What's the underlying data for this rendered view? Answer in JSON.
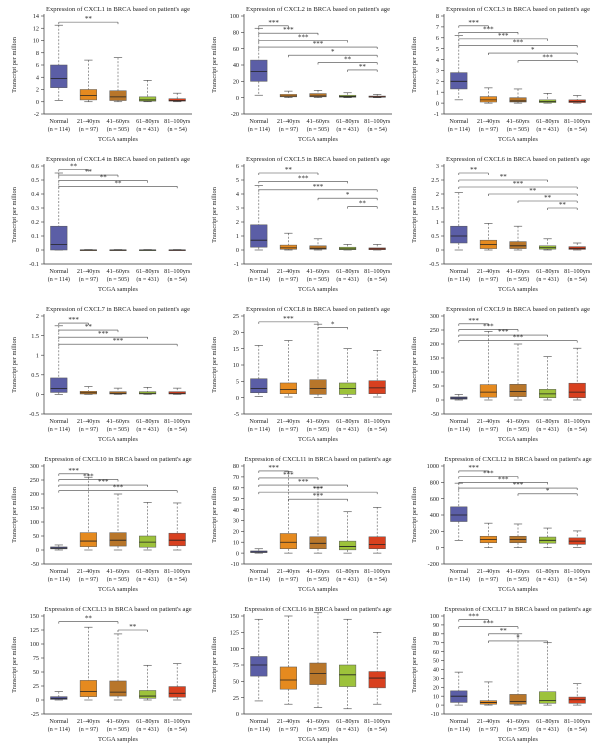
{
  "figure": {
    "groups": [
      {
        "label": "Normal",
        "n": "(n = 114)"
      },
      {
        "label": "21–40yrs",
        "n": "(n = 97)"
      },
      {
        "label": "41–60yrs",
        "n": "(n = 505)"
      },
      {
        "label": "61–80yrs",
        "n": "(n = 431)"
      },
      {
        "label": "81–100yrs",
        "n": "(n = 54)"
      }
    ],
    "group_colors": [
      "#5b5ea6",
      "#e58a1f",
      "#b8762a",
      "#9dc23b",
      "#d8401f"
    ]
  },
  "chart_data": [
    {
      "type": "box",
      "title": "Expression of CXCL1 in BRCA based on patient's age",
      "xlabel": "TCGA samples",
      "ylabel": "Transcript per million",
      "ylim": [
        -2,
        14
      ],
      "yticks": [
        -2,
        0,
        2,
        4,
        6,
        8,
        10,
        12,
        14
      ],
      "boxes": [
        [
          0.2,
          2.3,
          3.8,
          6.0,
          12.5
        ],
        [
          0.0,
          0.3,
          1.0,
          2.0,
          6.8
        ],
        [
          0.0,
          0.2,
          0.8,
          1.8,
          7.2
        ],
        [
          0.0,
          0.1,
          0.3,
          0.8,
          3.5
        ],
        [
          0.0,
          0.1,
          0.2,
          0.5,
          1.4
        ]
      ],
      "sig": [
        {
          "from": 0,
          "to": 2,
          "label": "**",
          "y": 13.0
        }
      ]
    },
    {
      "type": "box",
      "title": "Expression of CXCL2 in BRCA based on patient's age",
      "xlabel": "TCGA samples",
      "ylabel": "Transcript per million",
      "ylim": [
        -20,
        100
      ],
      "yticks": [
        -20,
        0,
        20,
        40,
        60,
        80,
        100
      ],
      "boxes": [
        [
          3,
          20,
          32,
          46,
          85
        ],
        [
          0,
          1,
          2,
          4,
          8
        ],
        [
          0,
          1,
          2,
          5,
          9
        ],
        [
          0,
          0.5,
          1.5,
          3,
          6
        ],
        [
          0,
          0.5,
          1,
          2,
          4
        ]
      ],
      "sig": [
        {
          "from": 0,
          "to": 1,
          "label": "***",
          "y": 88
        },
        {
          "from": 0,
          "to": 2,
          "label": "***",
          "y": 79
        },
        {
          "from": 0,
          "to": 3,
          "label": "***",
          "y": 70
        },
        {
          "from": 0,
          "to": 4,
          "label": "***",
          "y": 62
        },
        {
          "from": 1,
          "to": 4,
          "label": "*",
          "y": 52
        },
        {
          "from": 2,
          "to": 4,
          "label": "**",
          "y": 43
        },
        {
          "from": 3,
          "to": 4,
          "label": "**",
          "y": 34
        }
      ]
    },
    {
      "type": "box",
      "title": "Expression of CXCL3 in BRCA based on patient's age",
      "xlabel": "TCGA samples",
      "ylabel": "Transcript per million",
      "ylim": [
        -1,
        8
      ],
      "yticks": [
        -1,
        0,
        1,
        2,
        3,
        4,
        5,
        6,
        7,
        8
      ],
      "boxes": [
        [
          0.3,
          1.3,
          2.0,
          2.8,
          6.2
        ],
        [
          0,
          0.1,
          0.3,
          0.6,
          1.4
        ],
        [
          0,
          0.1,
          0.2,
          0.5,
          1.3
        ],
        [
          0,
          0.05,
          0.15,
          0.3,
          0.9
        ],
        [
          0,
          0.05,
          0.15,
          0.3,
          0.7
        ]
      ],
      "sig": [
        {
          "from": 0,
          "to": 1,
          "label": "***",
          "y": 7.1
        },
        {
          "from": 0,
          "to": 2,
          "label": "***",
          "y": 6.5
        },
        {
          "from": 0,
          "to": 3,
          "label": "***",
          "y": 5.9
        },
        {
          "from": 0,
          "to": 4,
          "label": "***",
          "y": 5.3
        },
        {
          "from": 1,
          "to": 4,
          "label": "*",
          "y": 4.6
        },
        {
          "from": 2,
          "to": 4,
          "label": "***",
          "y": 3.9
        }
      ]
    },
    {
      "type": "box",
      "title": "Expression of CXCL4 in BRCA based on patient's age",
      "xlabel": "TCGA samples",
      "ylabel": "Transcript per million",
      "ylim": [
        -0.1,
        0.6
      ],
      "yticks": [
        -0.1,
        0,
        0.1,
        0.2,
        0.3,
        0.4,
        0.5,
        0.6
      ],
      "boxes": [
        [
          0,
          0.0,
          0.04,
          0.17,
          0.55
        ],
        [
          0,
          0,
          0,
          0.001,
          0.003
        ],
        [
          0,
          0,
          0,
          0.001,
          0.003
        ],
        [
          0,
          0,
          0,
          0.001,
          0.003
        ],
        [
          0,
          0,
          0,
          0.001,
          0.003
        ]
      ],
      "sig": [
        {
          "from": 0,
          "to": 1,
          "label": "**",
          "y": 0.575
        },
        {
          "from": 0,
          "to": 2,
          "label": "**",
          "y": 0.535
        },
        {
          "from": 0,
          "to": 3,
          "label": "**",
          "y": 0.495
        },
        {
          "from": 0,
          "to": 4,
          "label": "**",
          "y": 0.455
        }
      ]
    },
    {
      "type": "box",
      "title": "Expression of CXCL5 in BRCA based on patient's age",
      "xlabel": "TCGA samples",
      "ylabel": "Transcript per million",
      "ylim": [
        -1,
        6
      ],
      "yticks": [
        -1,
        0,
        1,
        2,
        3,
        4,
        5,
        6
      ],
      "boxes": [
        [
          0,
          0.2,
          0.7,
          1.8,
          4.6
        ],
        [
          0,
          0.05,
          0.15,
          0.35,
          1.2
        ],
        [
          0,
          0.05,
          0.12,
          0.3,
          0.8
        ],
        [
          0,
          0.02,
          0.08,
          0.2,
          0.4
        ],
        [
          0,
          0.02,
          0.08,
          0.15,
          0.4
        ]
      ],
      "sig": [
        {
          "from": 0,
          "to": 2,
          "label": "**",
          "y": 5.5
        },
        {
          "from": 0,
          "to": 3,
          "label": "***",
          "y": 4.9
        },
        {
          "from": 0,
          "to": 4,
          "label": "***",
          "y": 4.3
        },
        {
          "from": 2,
          "to": 4,
          "label": "*",
          "y": 3.7
        },
        {
          "from": 3,
          "to": 4,
          "label": "**",
          "y": 3.1
        }
      ]
    },
    {
      "type": "box",
      "title": "Expression of CXCL6 in BRCA based on patient's age",
      "xlabel": "TCGA samples",
      "ylabel": "Transcript per million",
      "ylim": [
        -0.5,
        3
      ],
      "yticks": [
        -0.5,
        0,
        0.5,
        1,
        1.5,
        2,
        2.5,
        3
      ],
      "boxes": [
        [
          0,
          0.25,
          0.5,
          0.85,
          2.05
        ],
        [
          0,
          0.05,
          0.2,
          0.35,
          0.95
        ],
        [
          0,
          0.05,
          0.15,
          0.3,
          0.85
        ],
        [
          0,
          0.03,
          0.08,
          0.15,
          0.4
        ],
        [
          0,
          0.02,
          0.06,
          0.12,
          0.25
        ]
      ],
      "sig": [
        {
          "from": 0,
          "to": 1,
          "label": "**",
          "y": 2.75
        },
        {
          "from": 0,
          "to": 3,
          "label": "**",
          "y": 2.5
        },
        {
          "from": 0,
          "to": 4,
          "label": "***",
          "y": 2.25
        },
        {
          "from": 1,
          "to": 4,
          "label": "**",
          "y": 2.0
        },
        {
          "from": 2,
          "to": 4,
          "label": "**",
          "y": 1.75
        },
        {
          "from": 3,
          "to": 4,
          "label": "**",
          "y": 1.5
        }
      ]
    },
    {
      "type": "box",
      "title": "Expression of CXCL7 in BRCA based on patient's age",
      "xlabel": "TCGA samples",
      "ylabel": "Transcript per million",
      "ylim": [
        -0.5,
        2
      ],
      "yticks": [
        -0.5,
        0,
        0.5,
        1,
        1.5,
        2
      ],
      "boxes": [
        [
          0,
          0.05,
          0.15,
          0.42,
          1.75
        ],
        [
          0,
          0.01,
          0.04,
          0.08,
          0.2
        ],
        [
          0,
          0.01,
          0.03,
          0.07,
          0.16
        ],
        [
          0,
          0.01,
          0.03,
          0.07,
          0.18
        ],
        [
          0,
          0.01,
          0.03,
          0.07,
          0.16
        ]
      ],
      "sig": [
        {
          "from": 0,
          "to": 1,
          "label": "***",
          "y": 1.82
        },
        {
          "from": 0,
          "to": 2,
          "label": "**",
          "y": 1.64
        },
        {
          "from": 0,
          "to": 3,
          "label": "***",
          "y": 1.46
        },
        {
          "from": 0,
          "to": 4,
          "label": "***",
          "y": 1.28
        }
      ]
    },
    {
      "type": "box",
      "title": "Expression of CXCL8 in BRCA based on patient's age",
      "xlabel": "TCGA samples",
      "ylabel": "Transcript per million",
      "ylim": [
        -5,
        25
      ],
      "yticks": [
        -5,
        0,
        5,
        10,
        15,
        20,
        25
      ],
      "boxes": [
        [
          0.3,
          1.5,
          2.8,
          5.8,
          16
        ],
        [
          0.2,
          1.2,
          2.5,
          4.5,
          17.5
        ],
        [
          0.1,
          1.0,
          2.8,
          5.5,
          22.5
        ],
        [
          0.1,
          1.0,
          2.8,
          4.5,
          15
        ],
        [
          0.2,
          1.2,
          3.0,
          5.2,
          14.5
        ]
      ],
      "sig": [
        {
          "from": 0,
          "to": 2,
          "label": "***",
          "y": 23.2
        },
        {
          "from": 2,
          "to": 3,
          "label": "*",
          "y": 21.5
        }
      ]
    },
    {
      "type": "box",
      "title": "Expression of CXCL9 in BRCA based on patient's age",
      "xlabel": "TCGA samples",
      "ylabel": "Transcript per million",
      "ylim": [
        -50,
        300
      ],
      "yticks": [
        -50,
        0,
        50,
        100,
        150,
        200,
        250,
        300
      ],
      "boxes": [
        [
          0,
          3,
          7,
          11,
          20
        ],
        [
          0,
          10,
          28,
          55,
          245
        ],
        [
          0,
          12,
          30,
          56,
          200
        ],
        [
          0,
          8,
          22,
          38,
          155
        ],
        [
          0,
          8,
          28,
          60,
          185
        ]
      ],
      "sig": [
        {
          "from": 0,
          "to": 1,
          "label": "***",
          "y": 272
        },
        {
          "from": 0,
          "to": 2,
          "label": "***",
          "y": 252
        },
        {
          "from": 0,
          "to": 3,
          "label": "***",
          "y": 232
        },
        {
          "from": 0,
          "to": 4,
          "label": "***",
          "y": 212
        }
      ]
    },
    {
      "type": "box",
      "title": "Expression of CXCL10 in BRCA based on patient's age",
      "xlabel": "TCGA samples",
      "ylabel": "Transcript per million",
      "ylim": [
        -50,
        300
      ],
      "yticks": [
        -50,
        0,
        50,
        100,
        150,
        200,
        250,
        300
      ],
      "boxes": [
        [
          0,
          4,
          7,
          11,
          18
        ],
        [
          0,
          12,
          32,
          62,
          260
        ],
        [
          0,
          14,
          35,
          62,
          200
        ],
        [
          0,
          10,
          28,
          50,
          170
        ],
        [
          0,
          15,
          35,
          60,
          168
        ]
      ],
      "sig": [
        {
          "from": 0,
          "to": 1,
          "label": "***",
          "y": 272
        },
        {
          "from": 0,
          "to": 2,
          "label": "***",
          "y": 252
        },
        {
          "from": 0,
          "to": 3,
          "label": "***",
          "y": 232
        },
        {
          "from": 0,
          "to": 4,
          "label": "***",
          "y": 212
        }
      ]
    },
    {
      "type": "box",
      "title": "Expression of CXCL11 in BRCA based on patient's age",
      "xlabel": "TCGA samples",
      "ylabel": "Transcript per million",
      "ylim": [
        -10,
        80
      ],
      "yticks": [
        -10,
        0,
        10,
        20,
        30,
        40,
        50,
        60,
        70,
        80
      ],
      "boxes": [
        [
          0,
          0.5,
          1,
          2,
          4
        ],
        [
          0,
          4,
          10,
          18,
          75
        ],
        [
          0,
          4,
          9,
          15,
          60
        ],
        [
          0,
          3,
          6,
          11,
          38
        ],
        [
          0,
          4,
          8,
          15,
          42
        ]
      ],
      "sig": [
        {
          "from": 0,
          "to": 1,
          "label": "***",
          "y": 75.5
        },
        {
          "from": 0,
          "to": 2,
          "label": "***",
          "y": 69
        },
        {
          "from": 0,
          "to": 3,
          "label": "***",
          "y": 62.5
        },
        {
          "from": 0,
          "to": 4,
          "label": "***",
          "y": 56
        },
        {
          "from": 1,
          "to": 3,
          "label": "***",
          "y": 49.5
        }
      ]
    },
    {
      "type": "box",
      "title": "Expression of CXCL12 in BRCA based on patient's age",
      "xlabel": "TCGA samples",
      "ylabel": "Transcript per million",
      "ylim": [
        -200,
        1000
      ],
      "yticks": [
        -200,
        0,
        200,
        400,
        600,
        800,
        1000
      ],
      "boxes": [
        [
          90,
          320,
          400,
          500,
          790
        ],
        [
          0,
          60,
          100,
          140,
          300
        ],
        [
          0,
          60,
          100,
          140,
          290
        ],
        [
          0,
          55,
          90,
          130,
          240
        ],
        [
          0,
          40,
          80,
          120,
          205
        ]
      ],
      "sig": [
        {
          "from": 0,
          "to": 1,
          "label": "***",
          "y": 940
        },
        {
          "from": 0,
          "to": 2,
          "label": "***",
          "y": 870
        },
        {
          "from": 0,
          "to": 3,
          "label": "***",
          "y": 800
        },
        {
          "from": 0,
          "to": 4,
          "label": "***",
          "y": 730
        },
        {
          "from": 2,
          "to": 4,
          "label": "*",
          "y": 660
        }
      ]
    },
    {
      "type": "box",
      "title": "Expression of CXCL13 in BRCA based on patient's age",
      "xlabel": "TCGA samples",
      "ylabel": "Transcript per million",
      "ylim": [
        -25,
        150
      ],
      "yticks": [
        -25,
        0,
        25,
        50,
        75,
        100,
        125,
        150
      ],
      "boxes": [
        [
          0,
          1,
          3,
          6,
          15
        ],
        [
          0,
          6,
          15,
          35,
          130
        ],
        [
          0,
          7,
          14,
          34,
          118
        ],
        [
          0,
          3,
          7,
          17,
          62
        ],
        [
          0,
          5,
          12,
          24,
          65
        ]
      ],
      "sig": [
        {
          "from": 0,
          "to": 2,
          "label": "**",
          "y": 140
        },
        {
          "from": 2,
          "to": 3,
          "label": "**",
          "y": 125
        }
      ]
    },
    {
      "type": "box",
      "title": "Expression of CXCL16 in BRCA based on patient's age",
      "xlabel": "TCGA samples",
      "ylabel": "Transcript per million",
      "ylim": [
        0,
        150
      ],
      "yticks": [
        0,
        25,
        50,
        75,
        100,
        125,
        150
      ],
      "boxes": [
        [
          20,
          58,
          75,
          88,
          145
        ],
        [
          15,
          38,
          52,
          72,
          150
        ],
        [
          10,
          45,
          62,
          78,
          155
        ],
        [
          8,
          42,
          60,
          75,
          145
        ],
        [
          15,
          40,
          55,
          65,
          125
        ]
      ],
      "sig": []
    },
    {
      "type": "box",
      "title": "Expression of CXCL17 in BRCA based on patient's age",
      "xlabel": "TCGA samples",
      "ylabel": "Transcript per million",
      "ylim": [
        -10,
        100
      ],
      "yticks": [
        -10,
        0,
        10,
        20,
        30,
        40,
        50,
        60,
        70,
        80,
        90,
        100
      ],
      "boxes": [
        [
          0,
          3,
          10,
          16,
          37
        ],
        [
          0,
          1,
          3,
          5,
          26
        ],
        [
          0,
          1,
          4,
          12,
          80
        ],
        [
          0,
          2,
          5,
          15,
          70
        ],
        [
          0,
          2,
          6,
          9,
          24
        ]
      ],
      "sig": [
        {
          "from": 0,
          "to": 1,
          "label": "***",
          "y": 96
        },
        {
          "from": 0,
          "to": 2,
          "label": "***",
          "y": 88
        },
        {
          "from": 1,
          "to": 2,
          "label": "**",
          "y": 80
        },
        {
          "from": 1,
          "to": 3,
          "label": "*",
          "y": 72
        }
      ]
    }
  ]
}
